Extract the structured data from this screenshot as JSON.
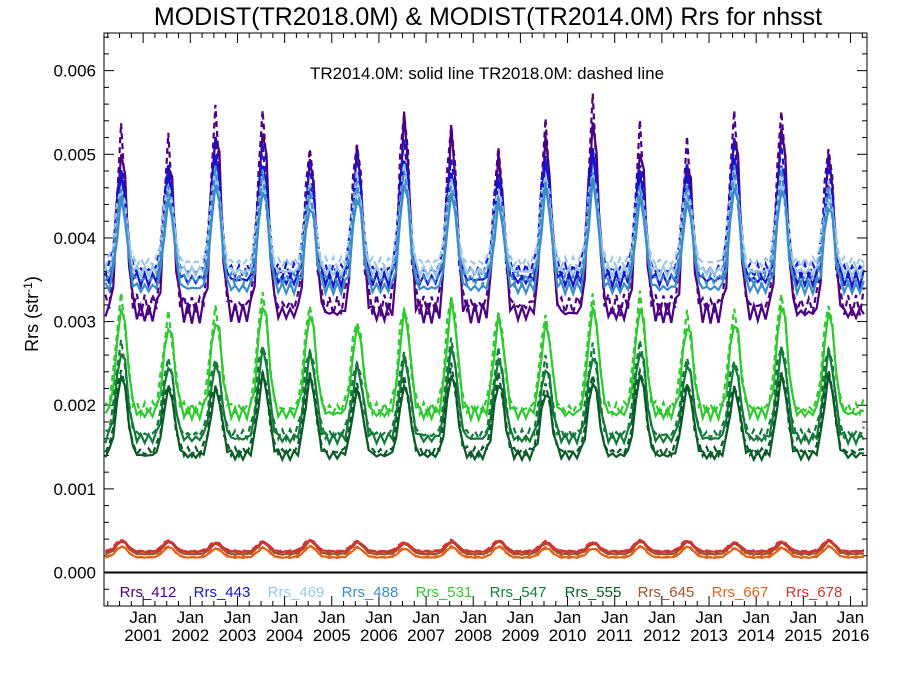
{
  "chart_data": {
    "type": "line",
    "title": "MODIST(TR2018.0M) & MODIST(TR2014.0M)  Rrs for nhsst",
    "note": "TR2014.0M: solid line   TR2018.0M: dashed line",
    "ylabel": "Rrs (str",
    "ylabel_sup": "-1",
    "ylabel_close": ")",
    "xlim": [
      2000.17,
      2016.35
    ],
    "ylim": [
      -0.0004,
      0.00645
    ],
    "y_ticks": [
      0.0,
      0.001,
      0.002,
      0.003,
      0.004,
      0.005,
      0.006
    ],
    "y_tick_labels": [
      "0.000",
      "0.001",
      "0.002",
      "0.003",
      "0.004",
      "0.005",
      "0.006"
    ],
    "x_ticks": [
      2001,
      2002,
      2003,
      2004,
      2005,
      2006,
      2007,
      2008,
      2009,
      2010,
      2011,
      2012,
      2013,
      2014,
      2015,
      2016
    ],
    "x_tick_month": "Jan",
    "x_tick_years": [
      "2001",
      "2002",
      "2003",
      "2004",
      "2005",
      "2006",
      "2007",
      "2008",
      "2009",
      "2010",
      "2011",
      "2012",
      "2013",
      "2014",
      "2015",
      "2016"
    ],
    "zero_line": 0.0,
    "grid": false,
    "legend_position": "bottom-inside",
    "series": [
      {
        "name": "Rrs_412",
        "color": "#4b0082",
        "base": 0.0031,
        "amp": 0.0021,
        "peak": 0.55,
        "width": 0.1
      },
      {
        "name": "Rrs_443",
        "color": "#1414d2",
        "base": 0.0035,
        "amp": 0.00135,
        "peak": 0.55,
        "width": 0.1
      },
      {
        "name": "Rrs_469",
        "color": "#9cc8e8",
        "base": 0.0036,
        "amp": 0.001,
        "peak": 0.55,
        "width": 0.1
      },
      {
        "name": "Rrs_488",
        "color": "#3c8cc8",
        "base": 0.0034,
        "amp": 0.00115,
        "peak": 0.55,
        "width": 0.1
      },
      {
        "name": "Rrs_531",
        "color": "#32c832",
        "base": 0.0019,
        "amp": 0.0012,
        "peak": 0.55,
        "width": 0.11
      },
      {
        "name": "Rrs_547",
        "color": "#147a3c",
        "base": 0.0016,
        "amp": 0.00098,
        "peak": 0.55,
        "width": 0.11
      },
      {
        "name": "Rrs_555",
        "color": "#0a5a28",
        "base": 0.0014,
        "amp": 0.00088,
        "peak": 0.55,
        "width": 0.11
      },
      {
        "name": "Rrs_645",
        "color": "#a0522d",
        "base": 0.00022,
        "amp": 0.00014,
        "peak": 0.55,
        "width": 0.12
      },
      {
        "name": "Rrs_667",
        "color": "#e0641e",
        "base": 0.00018,
        "amp": 0.00012,
        "peak": 0.55,
        "width": 0.12
      },
      {
        "name": "Rrs_678",
        "color": "#d23232",
        "base": 0.00025,
        "amp": 0.00012,
        "peak": 0.55,
        "width": 0.12
      }
    ],
    "x_start": 2000.2,
    "x_end": 2016.3,
    "x_step": 0.0833333
  }
}
